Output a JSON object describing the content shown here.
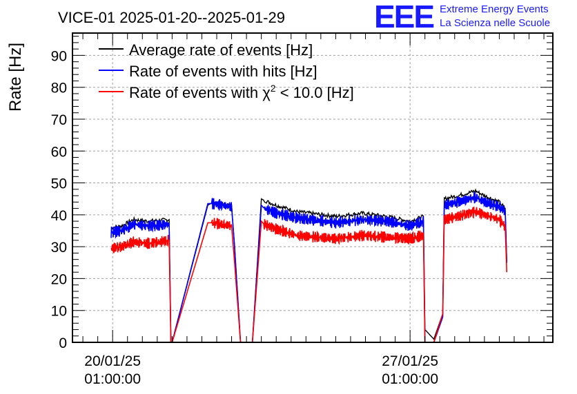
{
  "chart_data": {
    "type": "line",
    "title": "VICE-01 2025-01-20--2025-01-29",
    "xlabel": "",
    "ylabel": "Rate [Hz]",
    "ylim": [
      0,
      97
    ],
    "xlim_days": [
      -1.35,
      14.8
    ],
    "yticks": [
      0,
      10,
      20,
      30,
      40,
      50,
      60,
      70,
      80,
      90
    ],
    "xticks": [
      {
        "day": 0,
        "date": "20/01/25",
        "time": "01:00:00"
      },
      {
        "day": 10,
        "date": "27/01/25",
        "time": "01:00:00"
      }
    ],
    "grid": true,
    "legend_position": "top-left",
    "legend": {
      "avg": "Average rate of events [Hz]",
      "hits": "Rate of events with hits [Hz]",
      "chi_prefix": "Rate of events with ",
      "chi_symbol": "χ",
      "chi_sup": "2",
      "chi_suffix": " < 10.0 [Hz]"
    },
    "series": [
      {
        "name": "Average rate of events [Hz]",
        "color": "#000000",
        "x": [
          -0.05,
          0.3,
          0.7,
          1.2,
          1.9,
          1.96,
          2.0,
          3.2,
          3.35,
          4.0,
          4.1,
          4.3,
          4.7,
          5.0,
          5.1,
          5.5,
          6.2,
          7.5,
          8.4,
          9.2,
          10.0,
          10.45,
          10.5,
          10.8,
          11.1,
          11.15,
          11.6,
          12.2,
          12.5,
          13.0,
          13.2,
          13.25
        ],
        "y": [
          36,
          36.5,
          38.5,
          38,
          38.5,
          0,
          0,
          43,
          43.8,
          43,
          30,
          0,
          0,
          45,
          44.5,
          43,
          41,
          39.5,
          40.5,
          39.5,
          38,
          39.5,
          4,
          1,
          9,
          45,
          46,
          47.5,
          46,
          44,
          42,
          25
        ]
      },
      {
        "name": "Rate of events with hits [Hz]",
        "color": "#0000ff",
        "x": [
          -0.05,
          0.3,
          0.7,
          1.2,
          1.9,
          1.96,
          2.0,
          3.2,
          3.35,
          4.0,
          4.1,
          4.3,
          4.7,
          5.0,
          5.1,
          5.5,
          6.2,
          7.5,
          8.4,
          9.2,
          10.0,
          10.45,
          10.5,
          10.8,
          11.1,
          11.15,
          11.6,
          12.2,
          12.5,
          13.0,
          13.2,
          13.25
        ],
        "y": [
          34.5,
          35,
          37,
          36.5,
          37,
          0,
          0,
          43.5,
          43.5,
          42.5,
          30,
          0,
          0,
          43,
          42,
          40.5,
          39,
          37.5,
          38.5,
          38,
          36.5,
          38,
          0,
          0,
          8,
          43,
          44,
          45.5,
          44,
          42.5,
          41,
          25
        ]
      },
      {
        "name": "Rate of events with χ2 < 10.0 [Hz]",
        "color": "#ff0000",
        "x": [
          -0.05,
          0.3,
          0.7,
          1.2,
          1.9,
          1.96,
          2.0,
          3.2,
          3.35,
          4.0,
          4.1,
          4.3,
          4.7,
          5.0,
          5.1,
          5.5,
          6.2,
          7.5,
          8.4,
          9.2,
          10.0,
          10.45,
          10.5,
          10.8,
          11.1,
          11.15,
          11.6,
          12.2,
          12.5,
          13.0,
          13.2,
          13.25
        ],
        "y": [
          29.5,
          30,
          31.5,
          31,
          32,
          0,
          0,
          37.5,
          37.5,
          36.5,
          25,
          0,
          0,
          38,
          37,
          35.5,
          33.5,
          32.5,
          33.5,
          33,
          32.5,
          33.5,
          0,
          0,
          9,
          38.5,
          39.5,
          41,
          40,
          38.5,
          36,
          22
        ]
      }
    ]
  },
  "logo": {
    "mark": "EEE",
    "line1": "Extreme Energy Events",
    "line2": "La Scienza nelle Scuole"
  }
}
